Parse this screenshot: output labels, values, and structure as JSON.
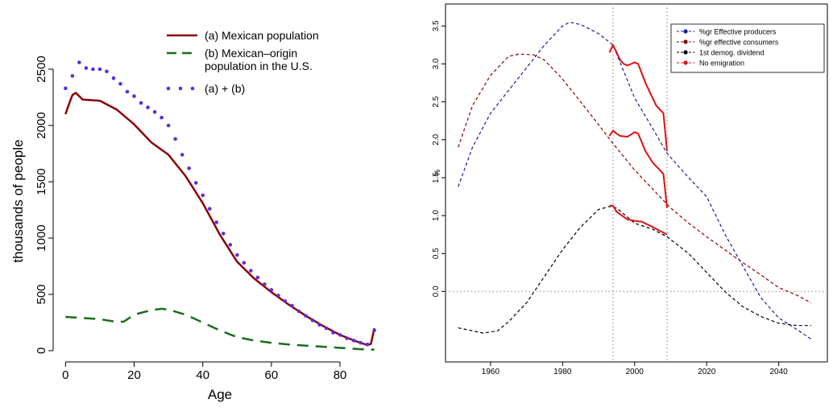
{
  "chart_data": [
    {
      "type": "line",
      "xlabel": "Age",
      "ylabel": "thousands of people",
      "xlim": [
        -3.6,
        93.6
      ],
      "ylim": [
        -100,
        2900
      ],
      "xticks": [
        0,
        20,
        40,
        60,
        80
      ],
      "yticks": [
        0,
        500,
        1000,
        1500,
        2000,
        2500
      ],
      "legend": "top-right",
      "box": false,
      "series": [
        {
          "name": "(a) Mexican population",
          "color": "#8b0000",
          "style": "solid",
          "x": [
            0,
            1,
            2,
            3,
            5,
            10,
            15,
            20,
            25,
            30,
            35,
            40,
            45,
            50,
            55,
            60,
            65,
            70,
            75,
            80,
            85,
            88,
            89,
            90
          ],
          "values": [
            2100,
            2190,
            2270,
            2290,
            2230,
            2220,
            2140,
            2010,
            1850,
            1740,
            1550,
            1310,
            1030,
            790,
            640,
            520,
            410,
            310,
            220,
            140,
            80,
            50,
            60,
            200
          ]
        },
        {
          "name": "(b) Mexican–origin\npopulation in the U.S.",
          "color": "#1a6e1a",
          "style": "dashed",
          "x": [
            0,
            1,
            2,
            3,
            5,
            10,
            15,
            17,
            20,
            25,
            28,
            30,
            35,
            40,
            45,
            50,
            55,
            60,
            65,
            70,
            75,
            80,
            85,
            88,
            89,
            90
          ],
          "values": [
            300,
            298,
            296,
            294,
            290,
            280,
            255,
            258,
            320,
            360,
            372,
            365,
            320,
            250,
            180,
            120,
            90,
            70,
            55,
            45,
            35,
            25,
            15,
            10,
            10,
            10
          ]
        },
        {
          "name": "(a) + (b)",
          "color": "#5b2ee0",
          "style": "dotted",
          "x": [
            0,
            2,
            4,
            6,
            8,
            10,
            12,
            14,
            16,
            18,
            20,
            22,
            24,
            26,
            28,
            30,
            32,
            34,
            36,
            38,
            40,
            42,
            44,
            46,
            48,
            50,
            52,
            54,
            56,
            58,
            60,
            62,
            64,
            66,
            68,
            70,
            72,
            74,
            76,
            78,
            80,
            82,
            84,
            86,
            88,
            90
          ],
          "values": [
            2330,
            2440,
            2560,
            2510,
            2500,
            2500,
            2480,
            2420,
            2370,
            2300,
            2260,
            2200,
            2160,
            2120,
            2070,
            2000,
            1880,
            1740,
            1620,
            1490,
            1380,
            1260,
            1140,
            1040,
            940,
            850,
            780,
            710,
            650,
            590,
            540,
            490,
            440,
            400,
            350,
            310,
            270,
            230,
            200,
            160,
            140,
            110,
            90,
            70,
            55,
            180
          ]
        }
      ]
    },
    {
      "type": "line",
      "ylabel": "%",
      "xlim": [
        1947.5,
        2053.5
      ],
      "ylim": [
        -0.93,
        3.79
      ],
      "xticks": [
        1960,
        1980,
        2000,
        2020,
        2040
      ],
      "yticks": [
        {
          "value": 0,
          "label": "0.0"
        },
        0.5,
        {
          "value": 1,
          "label": "1.0"
        },
        1.5,
        {
          "value": 2,
          "label": "2.0"
        },
        2.5,
        {
          "value": 3,
          "label": "3.0"
        },
        3.5
      ],
      "reference_lines": {
        "x": [
          1994,
          2009
        ],
        "y": [
          0
        ]
      },
      "legend": "top-right",
      "box": true,
      "series": [
        {
          "name": "%gr Effective producers",
          "color": "#1a1aa0",
          "style": "dashed",
          "x": [
            1951,
            1955,
            1960,
            1965,
            1970,
            1975,
            1980,
            1982,
            1985,
            1990,
            1994,
            2000,
            2005,
            2009,
            2015,
            2020,
            2025,
            2030,
            2035,
            2040,
            2045,
            2049
          ],
          "values": [
            1.38,
            1.9,
            2.35,
            2.65,
            2.95,
            3.25,
            3.5,
            3.55,
            3.52,
            3.4,
            3.25,
            2.55,
            2.15,
            1.82,
            1.5,
            1.25,
            0.76,
            0.34,
            -0.08,
            -0.35,
            -0.5,
            -0.63
          ]
        },
        {
          "name": "%gr effective consumers",
          "color": "#8b0000",
          "style": "dashed",
          "x": [
            1951,
            1955,
            1960,
            1965,
            1968,
            1972,
            1975,
            1980,
            1985,
            1990,
            1994,
            2000,
            2005,
            2010,
            2015,
            2020,
            2025,
            2030,
            2035,
            2040,
            2045,
            2049
          ],
          "values": [
            1.9,
            2.45,
            2.85,
            3.1,
            3.13,
            3.12,
            3.05,
            2.8,
            2.5,
            2.2,
            1.95,
            1.6,
            1.35,
            1.1,
            0.9,
            0.72,
            0.55,
            0.38,
            0.22,
            0.05,
            -0.05,
            -0.15
          ]
        },
        {
          "name": "1st demog. dividend",
          "color": "#000000",
          "style": "dashed",
          "x": [
            1951,
            1955,
            1958,
            1962,
            1965,
            1970,
            1975,
            1980,
            1985,
            1990,
            1993,
            1995,
            2000,
            2005,
            2009,
            2015,
            2020,
            2025,
            2030,
            2035,
            2040,
            2045,
            2049
          ],
          "values": [
            -0.48,
            -0.52,
            -0.55,
            -0.52,
            -0.4,
            -0.15,
            0.2,
            0.55,
            0.85,
            1.08,
            1.12,
            1.1,
            0.9,
            0.82,
            0.72,
            0.5,
            0.25,
            0.0,
            -0.2,
            -0.33,
            -0.42,
            -0.45,
            -0.45
          ]
        },
        {
          "name": "No emigration",
          "color": "#e01010",
          "style": "solid",
          "x": [
            1993,
            1994,
            1995,
            1996,
            1997,
            1998,
            1999,
            2000,
            2001,
            2003,
            2005,
            2006,
            2008,
            2009,
            null,
            1993,
            1994,
            1995,
            1996,
            1998,
            1999,
            2000,
            2001,
            2003,
            2005,
            2008,
            2009,
            null,
            1993,
            1994,
            1995,
            1998,
            2000,
            2002,
            2005,
            2009
          ],
          "values": [
            3.15,
            3.25,
            3.15,
            3.05,
            3.0,
            2.98,
            3.0,
            3.02,
            3.0,
            2.75,
            2.55,
            2.45,
            2.35,
            1.85,
            null,
            2.05,
            2.12,
            2.08,
            2.05,
            2.04,
            2.07,
            2.1,
            2.08,
            1.85,
            1.7,
            1.55,
            1.1,
            null,
            1.13,
            1.13,
            1.05,
            0.95,
            0.93,
            0.92,
            0.85,
            0.75
          ]
        }
      ]
    }
  ]
}
